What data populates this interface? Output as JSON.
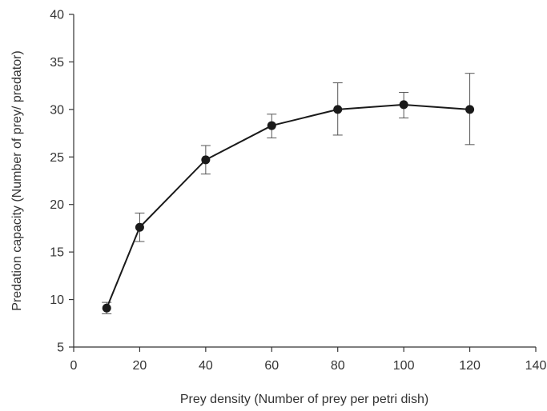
{
  "chart_data": {
    "type": "line",
    "title": "",
    "xlabel": "Prey density (Number of prey per petri dish)",
    "ylabel": "Predation capacity (Number of prey/ predator)",
    "xlim": [
      0,
      140
    ],
    "ylim": [
      5,
      40
    ],
    "xticks": [
      0,
      20,
      40,
      60,
      80,
      100,
      120,
      140
    ],
    "yticks": [
      5,
      10,
      15,
      20,
      25,
      30,
      35,
      40
    ],
    "grid": false,
    "legend": "none",
    "series": [
      {
        "x": [
          10,
          20,
          40,
          60,
          80,
          100,
          120
        ],
        "y": [
          9.1,
          17.6,
          24.7,
          28.3,
          30.0,
          30.5,
          30.0
        ],
        "error_low": [
          8.5,
          16.1,
          23.2,
          27.0,
          27.3,
          29.1,
          26.3
        ],
        "error_high": [
          9.7,
          19.1,
          26.2,
          29.5,
          32.8,
          31.8,
          33.8
        ]
      }
    ],
    "colors": {
      "line": "#1a1a1a",
      "marker": "#1a1a1a",
      "axis": "#333333",
      "text": "#333333"
    }
  }
}
